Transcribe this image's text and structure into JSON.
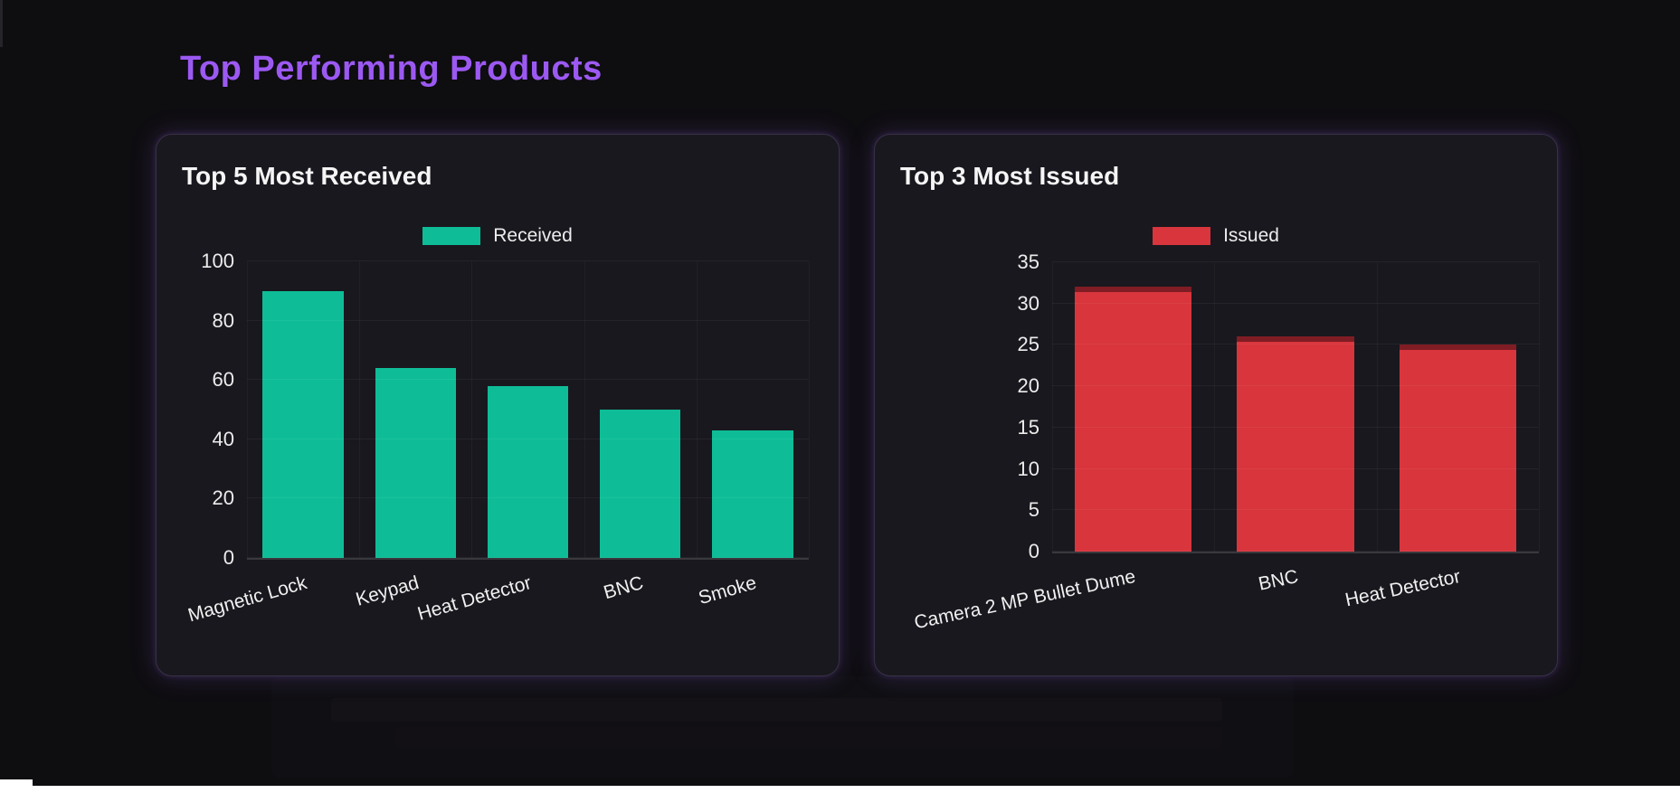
{
  "page": {
    "title": "Top Performing Products",
    "title_color": "#9c59f2",
    "background": "#0e0d10",
    "card_background": "#19181e"
  },
  "chart_data": [
    {
      "type": "bar",
      "card_title": "Top 5 Most Received",
      "legend": "Received",
      "legend_position": "top",
      "series_color": "#0ebd97",
      "categories": [
        "Magnetic Lock",
        "Keypad",
        "Heat Detector",
        "BNC",
        "Smoke"
      ],
      "values": [
        90,
        64,
        58,
        50,
        43
      ],
      "yticks": [
        0,
        20,
        40,
        60,
        80,
        100
      ],
      "ylim": [
        0,
        100
      ],
      "xlabel": "",
      "ylabel": "",
      "grid": true
    },
    {
      "type": "bar",
      "card_title": "Top 3 Most Issued",
      "legend": "Issued",
      "legend_position": "top",
      "series_color": "#d9353d",
      "categories": [
        "Camera 2 MP Bullet Dume",
        "BNC",
        "Heat Detector"
      ],
      "values": [
        32,
        26,
        25
      ],
      "yticks": [
        0,
        5,
        10,
        15,
        20,
        25,
        30,
        35
      ],
      "ylim": [
        0,
        35
      ],
      "xlabel": "",
      "ylabel": "",
      "grid": true
    }
  ]
}
